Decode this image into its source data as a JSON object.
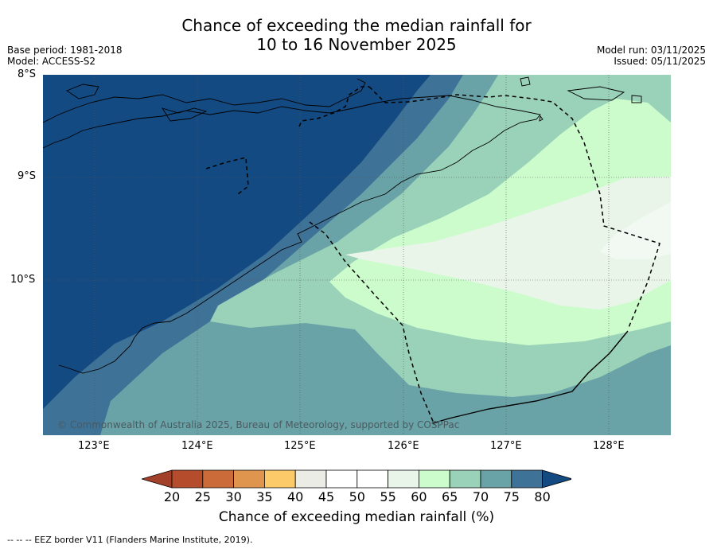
{
  "title_line1": "Chance of exceeding the median rainfall for",
  "title_line2": "10 to 16 November 2025",
  "base_period": "Base period: 1981-2018",
  "model": "Model: ACCESS-S2",
  "model_run": "Model run: 03/11/2025",
  "issued": "Issued: 05/11/2025",
  "lat_labels": [
    "8°S",
    "9°S",
    "10°S"
  ],
  "lon_labels": [
    "123°E",
    "124°E",
    "125°E",
    "126°E",
    "127°E",
    "128°E"
  ],
  "copyright": "© Commonwealth of Australia 2025, Bureau of Meteorology, supported by COSPPac",
  "legend": {
    "ticks": [
      "20",
      "25",
      "30",
      "35",
      "40",
      "45",
      "50",
      "55",
      "60",
      "65",
      "70",
      "75",
      "80"
    ],
    "label": "Chance of exceeding median rainfall (%)",
    "colors": [
      "#a3402a",
      "#b54c2c",
      "#cc6b3a",
      "#e0954e",
      "#fdca6a",
      "#ececE6",
      "#ffffff",
      "#ffffff",
      "#eaf5ea",
      "#ccfccc",
      "#9ad1b9",
      "#6aa3a7",
      "#3f7297",
      "#144a82"
    ]
  },
  "footer": "-- -- -- EEZ border V11 (Flanders Marine Institute, 2019)."
}
